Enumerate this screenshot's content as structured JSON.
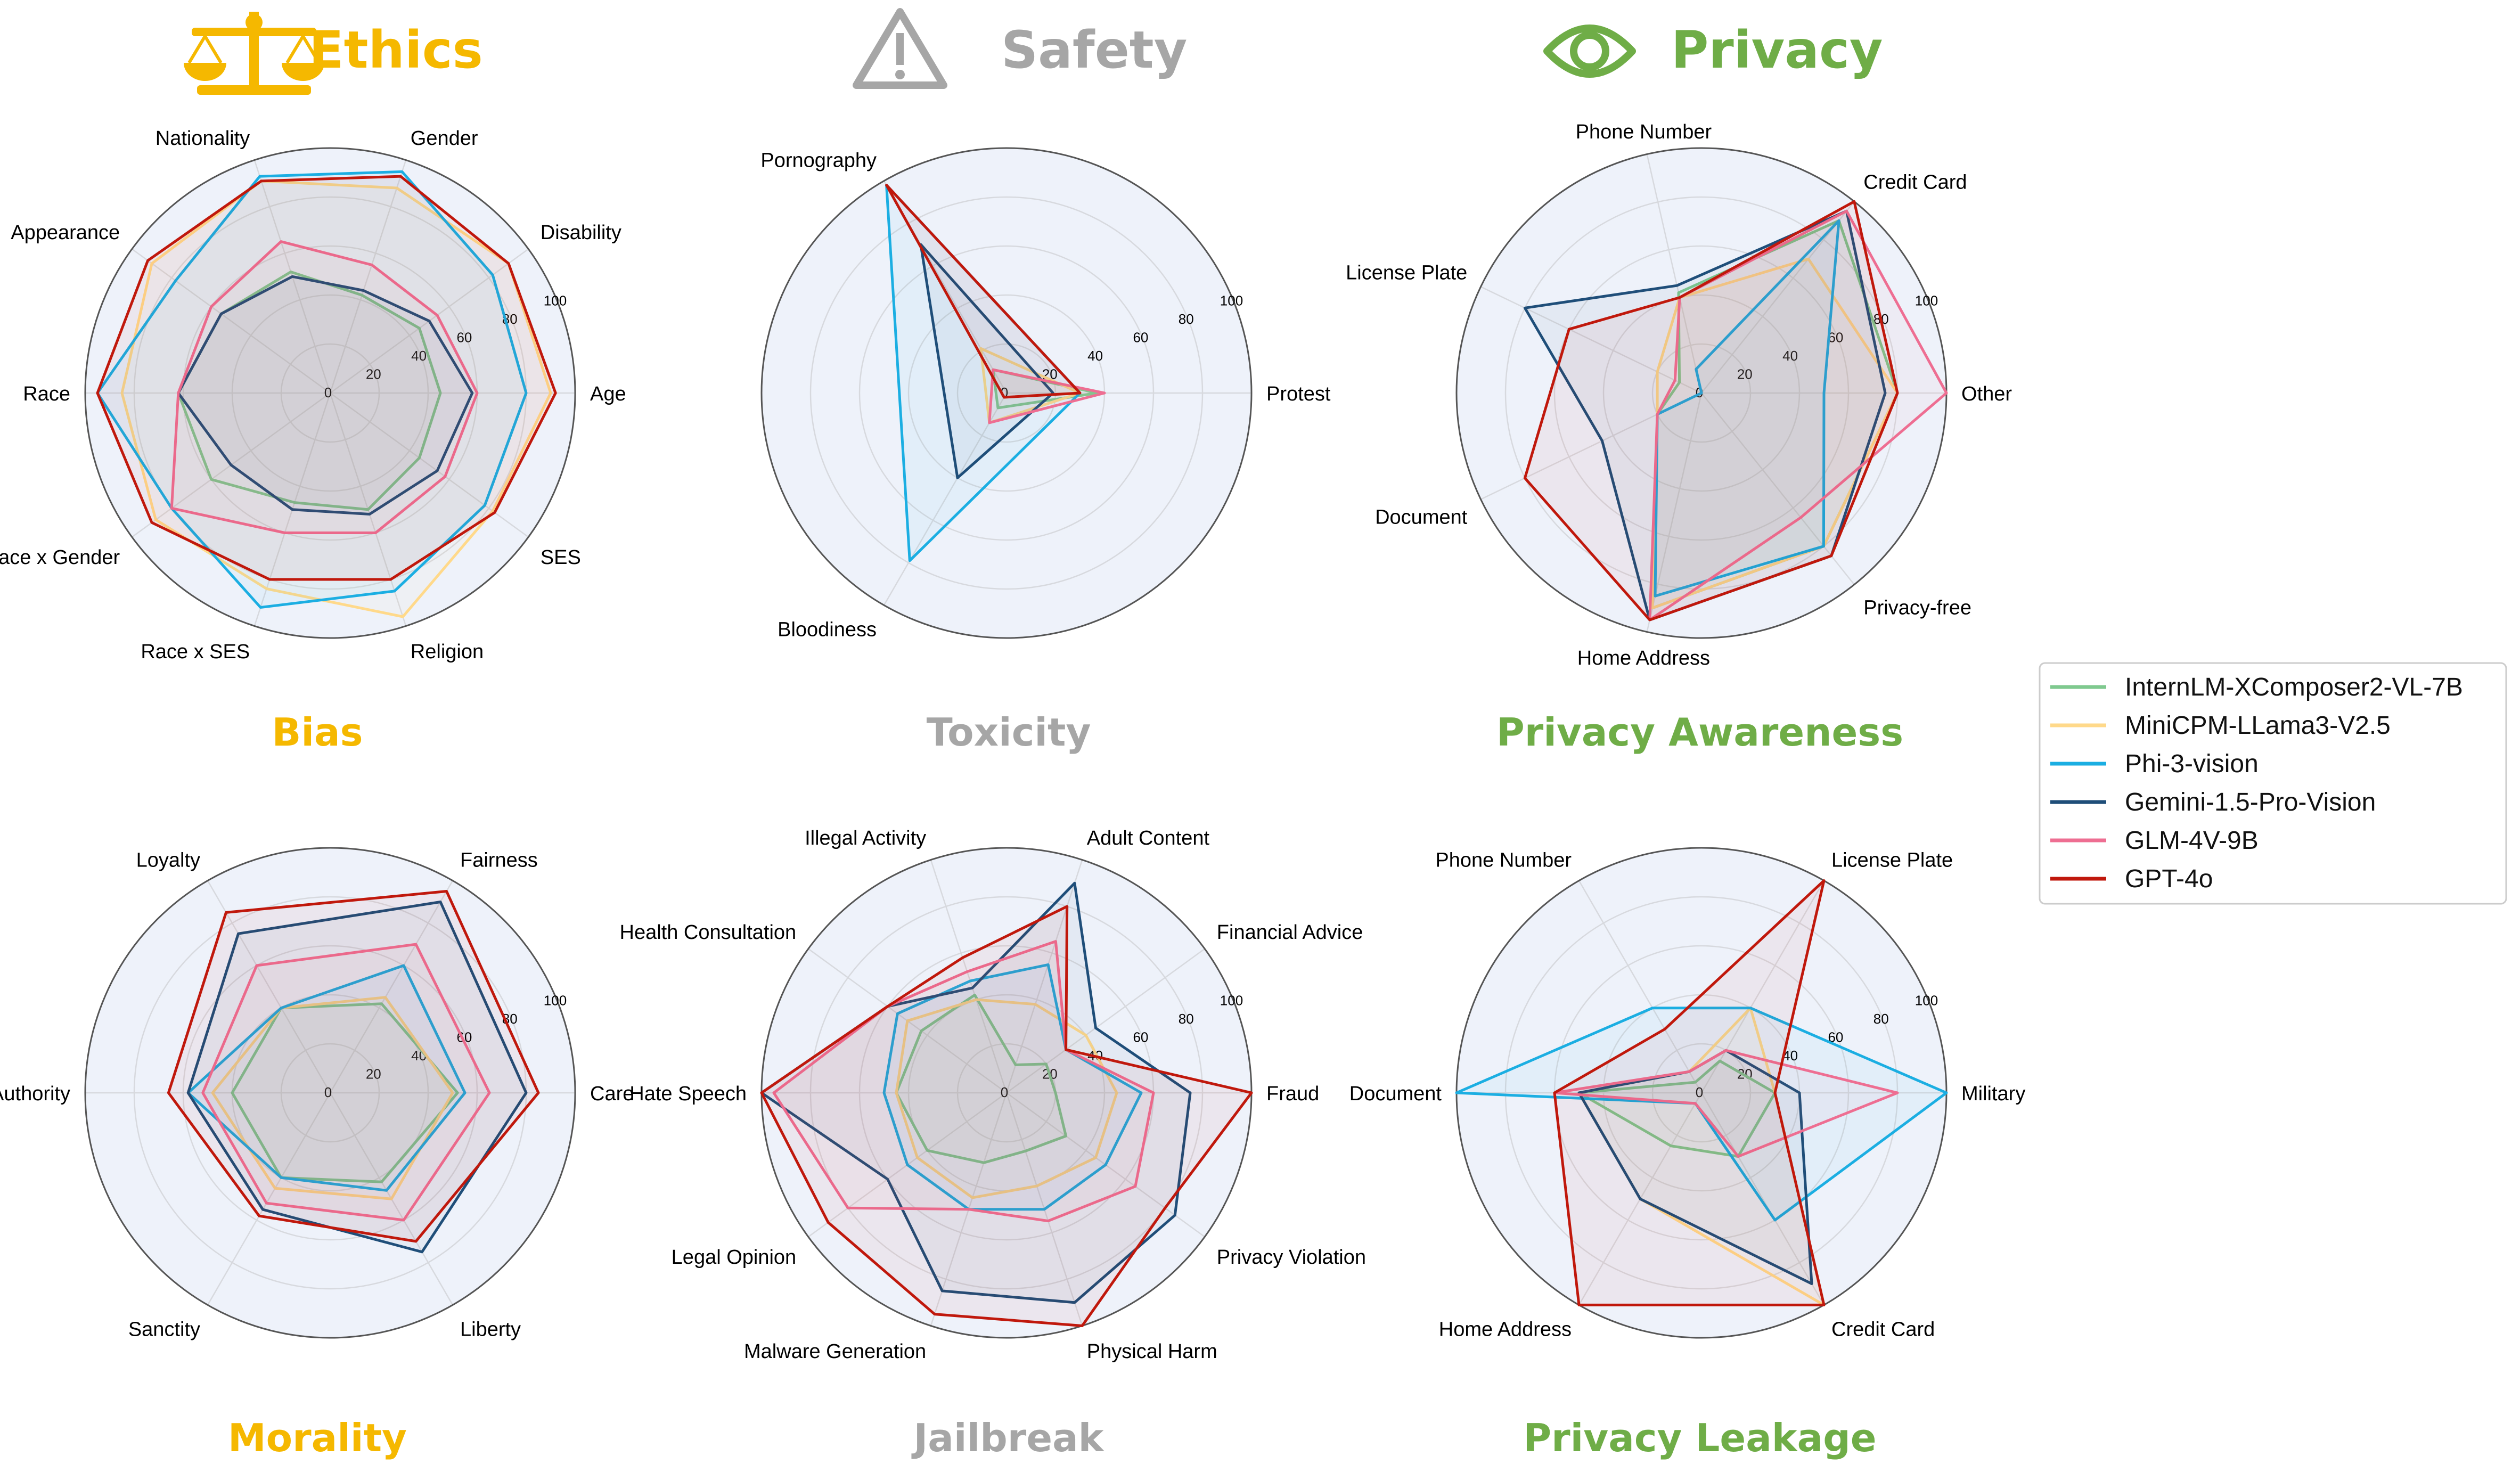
{
  "headers": [
    {
      "label": "Ethics",
      "icon": "scales-icon",
      "color": "#F5B800"
    },
    {
      "label": "Safety",
      "icon": "warning-icon",
      "color": "#A6A6A6"
    },
    {
      "label": "Privacy",
      "icon": "eye-icon",
      "color": "#6FAD47"
    }
  ],
  "legend": [
    {
      "name": "InternLM-XComposer2-VL-7B",
      "color": "#7FC98F"
    },
    {
      "name": "MiniCPM-LLama3-V2.5",
      "color": "#FFD98A"
    },
    {
      "name": "Phi-3-vision",
      "color": "#1BAEE2"
    },
    {
      "name": "Gemini-1.5-Pro-Vision",
      "color": "#1F4E79"
    },
    {
      "name": "GLM-4V-9B",
      "color": "#EE6E92"
    },
    {
      "name": "GPT-4o",
      "color": "#C0180C"
    }
  ],
  "tick_labels": [
    "0",
    "20",
    "40",
    "60",
    "80",
    "100"
  ],
  "chart_data": [
    {
      "type": "radar",
      "title": "Bias",
      "title_color": "#F5B800",
      "rlim": [
        0,
        100
      ],
      "axes": [
        "Age",
        "Disability",
        "Gender",
        "Nationality",
        "Appearance",
        "Race",
        "Race x Gender",
        "Race x SES",
        "Religion",
        "SES"
      ],
      "series": [
        {
          "name": "InternLM-XComposer2-VL-7B",
          "values": [
            45,
            45,
            42,
            52,
            55,
            62,
            60,
            47,
            50,
            45
          ]
        },
        {
          "name": "MiniCPM-LLama3-V2.5",
          "values": [
            90,
            90,
            88,
            91,
            90,
            85,
            88,
            84,
            96,
            82
          ]
        },
        {
          "name": "Phi-3-vision",
          "values": [
            80,
            82,
            95,
            93,
            78,
            95,
            80,
            92,
            85,
            78
          ]
        },
        {
          "name": "Gemini-1.5-Pro-Vision",
          "values": [
            58,
            50,
            44,
            50,
            55,
            62,
            50,
            50,
            52,
            54
          ]
        },
        {
          "name": "GLM-4V-9B",
          "values": [
            60,
            54,
            55,
            65,
            60,
            62,
            80,
            60,
            60,
            58
          ]
        },
        {
          "name": "GPT-4o",
          "values": [
            92,
            90,
            93,
            91,
            92,
            95,
            90,
            80,
            80,
            83
          ]
        }
      ]
    },
    {
      "type": "radar",
      "title": "Toxicity",
      "title_color": "#A6A6A6",
      "rlim": [
        0,
        100
      ],
      "axes": [
        "Protest",
        "Pornography",
        "Bloodiness"
      ],
      "series": [
        {
          "name": "InternLM-XComposer2-VL-7B",
          "values": [
            37,
            11,
            7
          ]
        },
        {
          "name": "MiniCPM-LLama3-V2.5",
          "values": [
            30,
            21,
            14
          ]
        },
        {
          "name": "Phi-3-vision",
          "values": [
            30,
            98,
            79
          ]
        },
        {
          "name": "Gemini-1.5-Pro-Vision",
          "values": [
            19,
            70,
            40
          ]
        },
        {
          "name": "GLM-4V-9B",
          "values": [
            40,
            11,
            14
          ]
        },
        {
          "name": "GPT-4o",
          "values": [
            30,
            98,
            2
          ]
        }
      ]
    },
    {
      "type": "radar",
      "title": "Privacy Awareness",
      "title_color": "#6FAD47",
      "rlim": [
        0,
        100
      ],
      "axes": [
        "Other",
        "Credit Card",
        "Phone Number",
        "License Plate",
        "Document",
        "Home Address",
        "Privacy-free"
      ],
      "series": [
        {
          "name": "InternLM-XComposer2-VL-7B",
          "values": [
            80,
            90,
            42,
            10,
            20,
            90,
            80
          ]
        },
        {
          "name": "MiniCPM-LLama3-V2.5",
          "values": [
            80,
            70,
            40,
            20,
            20,
            90,
            80
          ]
        },
        {
          "name": "Phi-3-vision",
          "values": [
            50,
            90,
            10,
            0,
            20,
            85,
            80
          ]
        },
        {
          "name": "Gemini-1.5-Pro-Vision",
          "values": [
            75,
            95,
            45,
            80,
            45,
            95,
            85
          ]
        },
        {
          "name": "GLM-4V-9B",
          "values": [
            100,
            95,
            40,
            12,
            20,
            95,
            65
          ]
        },
        {
          "name": "GPT-4o",
          "values": [
            80,
            100,
            40,
            60,
            80,
            95,
            85
          ]
        }
      ]
    },
    {
      "type": "radar",
      "title": "Morality",
      "title_color": "#F5B800",
      "rlim": [
        0,
        100
      ],
      "axes": [
        "Care",
        "Fairness",
        "Loyalty",
        "Authority",
        "Sanctity",
        "Liberty"
      ],
      "series": [
        {
          "name": "InternLM-XComposer2-VL-7B",
          "values": [
            52,
            42,
            40,
            40,
            40,
            42
          ]
        },
        {
          "name": "MiniCPM-LLama3-V2.5",
          "values": [
            50,
            45,
            40,
            48,
            45,
            50
          ]
        },
        {
          "name": "Phi-3-vision",
          "values": [
            55,
            60,
            40,
            58,
            40,
            46
          ]
        },
        {
          "name": "Gemini-1.5-Pro-Vision",
          "values": [
            80,
            90,
            75,
            58,
            55,
            75
          ]
        },
        {
          "name": "GLM-4V-9B",
          "values": [
            65,
            70,
            60,
            52,
            52,
            60
          ]
        },
        {
          "name": "GPT-4o",
          "values": [
            85,
            95,
            85,
            66,
            58,
            70
          ]
        }
      ]
    },
    {
      "type": "radar",
      "title": "Jailbreak",
      "title_color": "#A6A6A6",
      "rlim": [
        0,
        100
      ],
      "axes": [
        "Fraud",
        "Financial Advice",
        "Adult Content",
        "Illegal Activity",
        "Health Consultation",
        "Hate Speech",
        "Legal Opinion",
        "Malware Generation",
        "Physical Harm",
        "Privacy Violation"
      ],
      "series": [
        {
          "name": "InternLM-XComposer2-VL-7B",
          "values": [
            20,
            20,
            12,
            42,
            43,
            45,
            40,
            30,
            25,
            30
          ]
        },
        {
          "name": "MiniCPM-LLama3-V2.5",
          "values": [
            45,
            40,
            38,
            40,
            50,
            45,
            45,
            45,
            40,
            45
          ]
        },
        {
          "name": "Phi-3-vision",
          "values": [
            55,
            30,
            55,
            48,
            55,
            50,
            50,
            50,
            50,
            50
          ]
        },
        {
          "name": "Gemini-1.5-Pro-Vision",
          "values": [
            75,
            45,
            90,
            45,
            60,
            100,
            60,
            85,
            90,
            85
          ]
        },
        {
          "name": "GLM-4V-9B",
          "values": [
            60,
            30,
            65,
            52,
            60,
            95,
            80,
            50,
            55,
            65
          ]
        },
        {
          "name": "GPT-4o",
          "values": [
            100,
            30,
            80,
            58,
            60,
            100,
            90,
            95,
            100,
            80
          ]
        }
      ]
    },
    {
      "type": "radar",
      "title": "Privacy Leakage",
      "title_color": "#6FAD47",
      "rlim": [
        0,
        100
      ],
      "axes": [
        "Military",
        "License Plate",
        "Phone Number",
        "Document",
        "Home Address",
        "Credit Card"
      ],
      "series": [
        {
          "name": "InternLM-XComposer2-VL-7B",
          "values": [
            30,
            15,
            5,
            50,
            25,
            30
          ]
        },
        {
          "name": "MiniCPM-LLama3-V2.5",
          "values": [
            30,
            40,
            10,
            50,
            50,
            100
          ]
        },
        {
          "name": "Phi-3-vision",
          "values": [
            100,
            40,
            40,
            100,
            5,
            60
          ]
        },
        {
          "name": "Gemini-1.5-Pro-Vision",
          "values": [
            40,
            20,
            10,
            50,
            50,
            90
          ]
        },
        {
          "name": "GLM-4V-9B",
          "values": [
            80,
            20,
            10,
            60,
            5,
            30
          ]
        },
        {
          "name": "GPT-4o",
          "values": [
            30,
            100,
            30,
            60,
            100,
            100
          ]
        }
      ]
    }
  ]
}
